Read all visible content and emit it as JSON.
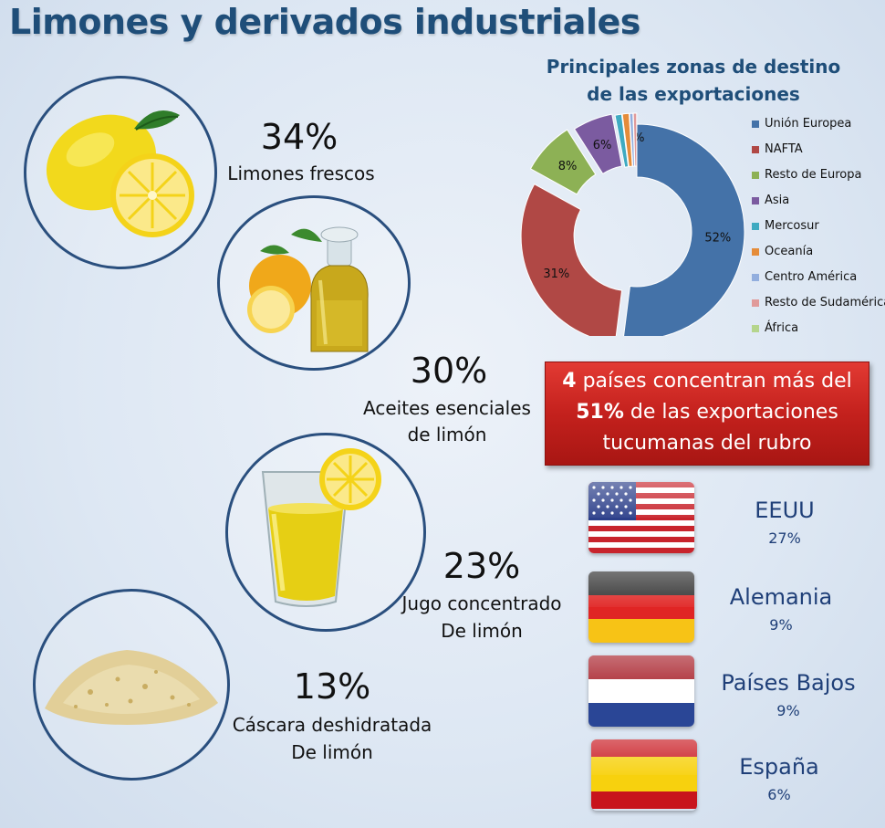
{
  "title": "Limones y derivados industriales",
  "products": [
    {
      "pct": "34%",
      "label_line1": "Limones frescos",
      "label_line2": "",
      "icon": "fresh-lemon"
    },
    {
      "pct": "30%",
      "label_line1": "Aceites esenciales",
      "label_line2": "de limón",
      "icon": "essential-oil-bottle"
    },
    {
      "pct": "23%",
      "label_line1": "Jugo concentrado",
      "label_line2": "De limón",
      "icon": "lemon-juice-glass"
    },
    {
      "pct": "13%",
      "label_line1": "Cáscara deshidratada",
      "label_line2": "De limón",
      "icon": "dried-peel-pile"
    }
  ],
  "chart_data": {
    "type": "pie",
    "title_line1": "Principales zonas de destino",
    "title_line2": "de las exportaciones",
    "categories": [
      "Unión Europea",
      "NAFTA",
      "Resto de Europa",
      "Asia",
      "Mercosur",
      "Oceanía",
      "Centro América",
      "Resto de Sudamérica",
      "África"
    ],
    "values": [
      52,
      31,
      8,
      6,
      1,
      1,
      0.5,
      0.5,
      0
    ],
    "data_labels": [
      "52%",
      "31%",
      "8%",
      "6%",
      "1%",
      "",
      "",
      "",
      ""
    ],
    "colors": [
      "#4472a8",
      "#b04845",
      "#8db155",
      "#7b5ba0",
      "#3faac1",
      "#e58c3a",
      "#92aede",
      "#e09a9a",
      "#b5d58c"
    ],
    "style": "exploded donut",
    "legend_position": "right"
  },
  "banner": {
    "bold1": "4",
    "text1": " países concentran más del",
    "bold2": "51%",
    "text2": " de las exportaciones",
    "text3": "tucumanas del rubro"
  },
  "countries": [
    {
      "name": "EEUU",
      "pct": "27%",
      "flag": "usa-flag"
    },
    {
      "name": "Alemania",
      "pct": "9%",
      "flag": "germany-flag"
    },
    {
      "name": "Países Bajos",
      "pct": "9%",
      "flag": "netherlands-flag"
    },
    {
      "name": "España",
      "pct": "6%",
      "flag": "spain-flag"
    }
  ]
}
